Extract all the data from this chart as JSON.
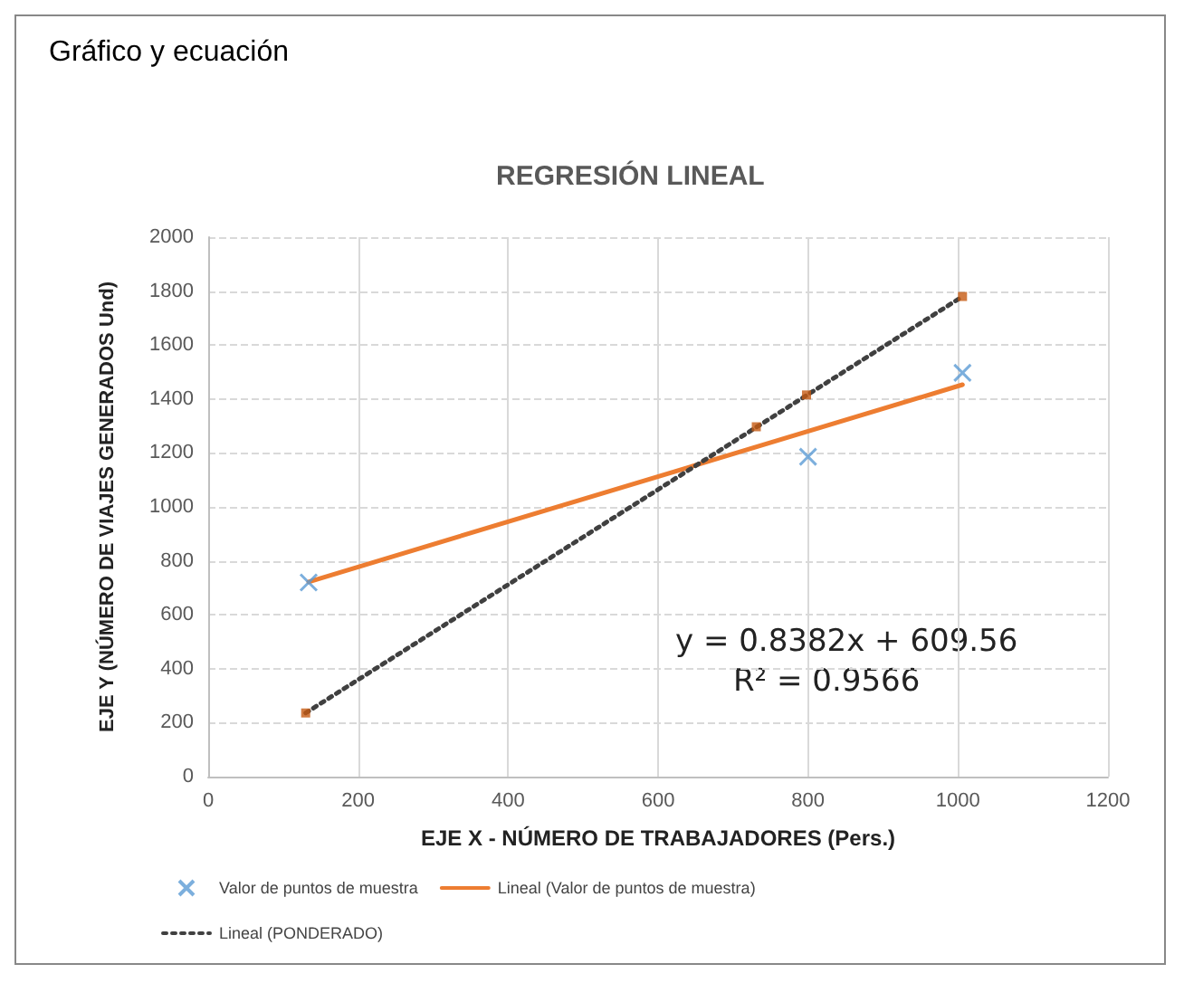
{
  "chart_data": {
    "type": "scatter",
    "title": "REGRESIÓN LINEAL",
    "xlabel": "EJE X - NÚMERO DE TRABAJADORES (Pers.)",
    "ylabel": "EJE Y (NÚMERO DE VIAJES GENERADOS Und)",
    "annotations": [
      "Gráfico y ecuación",
      "y = 0.8382x + 609.56",
      "R² = 0.9566"
    ],
    "xlim": [
      0,
      1200
    ],
    "xticks": [
      0,
      200,
      400,
      600,
      800,
      1000,
      1200
    ],
    "ylim": [
      0,
      2000
    ],
    "yticks": [
      0,
      200,
      400,
      600,
      800,
      1000,
      1200,
      1400,
      1600,
      1800,
      2000
    ],
    "grid": true,
    "legend": "bottom",
    "series": [
      {
        "name": "Valor de puntos de muestra",
        "marker": "cross",
        "color": "#5b9bd5",
        "x": [
          134,
          800,
          1006
        ],
        "values": [
          720,
          1186,
          1497
        ]
      },
      {
        "name": "Lineal (Valor de puntos de muestra)",
        "type": "line",
        "marker": "none",
        "line_style": "solid",
        "color": "#ed7d31",
        "x": [
          134,
          1006
        ],
        "values": [
          722,
          1453
        ]
      },
      {
        "name": "Lineal (PONDERADO)",
        "type": "line",
        "marker": "none",
        "line_style": "dotted",
        "color": "#404040",
        "x": [
          130,
          1006
        ],
        "values": [
          236,
          1780
        ]
      },
      {
        "marker": "square",
        "color": "#c55a11",
        "x": [
          130,
          731,
          798,
          1006
        ],
        "values": [
          236,
          1297,
          1415,
          1780
        ]
      }
    ]
  }
}
